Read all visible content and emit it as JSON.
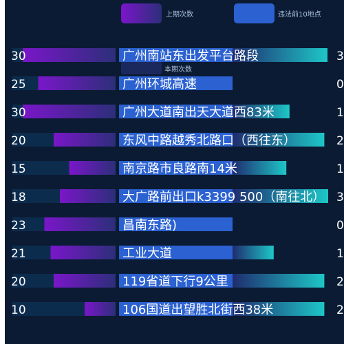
{
  "legend": {
    "prev_label": "上期次数",
    "loc_label": "违法前10地点",
    "cur_label": "本期次数"
  },
  "colors": {
    "background": "#0b1b33",
    "prev_gradient": [
      "#7a16c9",
      "#2c2f7a"
    ],
    "loc_bar": "#2b61d1",
    "cur_gradient": [
      "#1f2c6f",
      "#1ec7c7"
    ],
    "track": "#0c2c4e",
    "text": "#ffffff"
  },
  "chart_data": {
    "type": "bar",
    "categories": [
      "广州南站东出发平台路段",
      "广州环城高速",
      "广州大道南出天大道西83米",
      "东风中路越秀北路口（西往东）",
      "南京路市良路南14米",
      "大广路前出口k3399 500（南往北）",
      "昌南东路)",
      "工业大道",
      "119省道下行9公里",
      "106国道出望胜北街西38米"
    ],
    "series": [
      {
        "name": "上期次数",
        "values": [
          30,
          25,
          30,
          20,
          15,
          18,
          23,
          21,
          20,
          10
        ]
      },
      {
        "name": "本期次数",
        "values": [
          30,
          0,
          18,
          29,
          17,
          32,
          0,
          13,
          29,
          29
        ]
      }
    ],
    "right_labels": [
      "3",
      "0",
      "1",
      "2",
      "1",
      "3",
      "0",
      "1",
      "2",
      "2"
    ]
  }
}
